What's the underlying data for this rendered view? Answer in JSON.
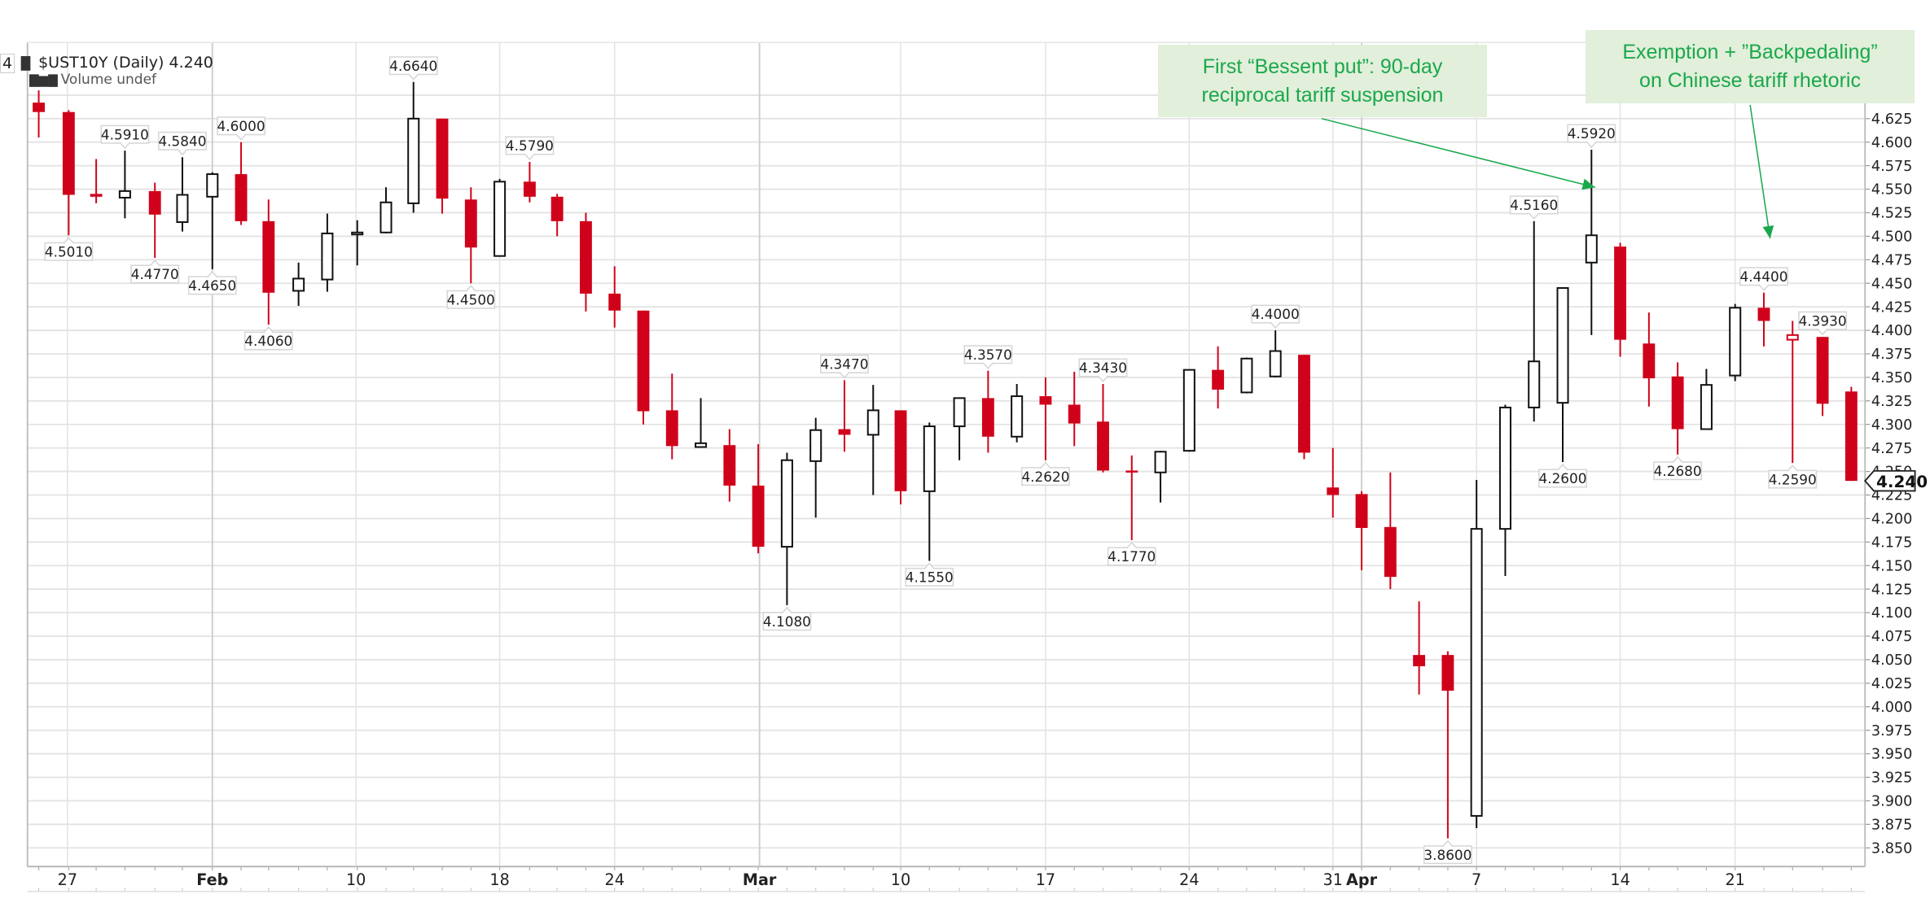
{
  "legend": {
    "prefix": "4",
    "icon": "candlestick-icon",
    "title": "$UST10Y (Daily) 4.240",
    "volume_icon": "bar-chart-icon",
    "volume": "Volume undef"
  },
  "annotations": [
    {
      "line1": "First “Bessent put”: 90-day",
      "line2": "reciprocal tariff suspension"
    },
    {
      "line1": "Exemption + ”Backpedaling”",
      "line2": "on Chinese tariff rhetoric"
    }
  ],
  "colors": {
    "down": "#d0021b",
    "up_stroke": "#111111",
    "grid": "#e3e3e3",
    "grid_major": "#cfcfcf",
    "annotation_bg": "#e2efda",
    "annotation_text": "#1aa84c",
    "arrow": "#1aa84c"
  },
  "chart_data": {
    "type": "candlestick",
    "title": "$UST10Y (Daily) 4.240",
    "xlabel": "",
    "ylabel": "",
    "ylim": [
      3.85,
      4.625
    ],
    "last_value": "4.240",
    "y_ticks": [
      "4.625",
      "4.600",
      "4.575",
      "4.550",
      "4.525",
      "4.500",
      "4.475",
      "4.450",
      "4.425",
      "4.400",
      "4.375",
      "4.350",
      "4.325",
      "4.300",
      "4.275",
      "4.250",
      "4.225",
      "4.200",
      "4.175",
      "4.150",
      "4.125",
      "4.100",
      "4.075",
      "4.050",
      "4.025",
      "4.000",
      "3.975",
      "3.950",
      "3.925",
      "3.900",
      "3.875",
      "3.850"
    ],
    "x_tick_labels": [
      {
        "label": "27",
        "x": 54,
        "bold": false
      },
      {
        "label": "Feb",
        "x": 170,
        "bold": true
      },
      {
        "label": "10",
        "x": 285,
        "bold": false
      },
      {
        "label": "18",
        "x": 400,
        "bold": false
      },
      {
        "label": "24",
        "x": 492,
        "bold": false
      },
      {
        "label": "Mar",
        "x": 608,
        "bold": true
      },
      {
        "label": "10",
        "x": 721,
        "bold": false
      },
      {
        "label": "17",
        "x": 837,
        "bold": false
      },
      {
        "label": "24",
        "x": 952,
        "bold": false
      },
      {
        "label": "31",
        "x": 1067,
        "bold": false
      },
      {
        "label": "Apr",
        "x": 1090,
        "bold": true
      },
      {
        "label": "7",
        "x": 1182,
        "bold": false
      },
      {
        "label": "14",
        "x": 1297,
        "bold": false
      },
      {
        "label": "21",
        "x": 1389,
        "bold": false
      }
    ],
    "candles": [
      {
        "x": 31,
        "o": 4.642,
        "h": 4.655,
        "l": 4.605,
        "c": 4.632
      },
      {
        "x": 55,
        "o": 4.632,
        "h": 4.634,
        "l": 4.501,
        "c": 4.544,
        "label_low": "4.5010"
      },
      {
        "x": 77,
        "o": 4.545,
        "h": 4.582,
        "l": 4.535,
        "c": 4.542
      },
      {
        "x": 100,
        "o": 4.541,
        "h": 4.591,
        "l": 4.519,
        "c": 4.548,
        "label_high": "4.5910"
      },
      {
        "x": 124,
        "o": 4.548,
        "h": 4.557,
        "l": 4.477,
        "c": 4.523,
        "label_low": "4.4770"
      },
      {
        "x": 146,
        "o": 4.515,
        "h": 4.584,
        "l": 4.505,
        "c": 4.544,
        "label_high": "4.5840"
      },
      {
        "x": 170,
        "o": 4.542,
        "h": 4.568,
        "l": 4.465,
        "c": 4.566,
        "label_low": "4.4650"
      },
      {
        "x": 193,
        "o": 4.566,
        "h": 4.6,
        "l": 4.512,
        "c": 4.516,
        "label_high": "4.6000"
      },
      {
        "x": 215,
        "o": 4.516,
        "h": 4.539,
        "l": 4.406,
        "c": 4.44,
        "label_low": "4.4060"
      },
      {
        "x": 239,
        "o": 4.442,
        "h": 4.472,
        "l": 4.426,
        "c": 4.455
      },
      {
        "x": 262,
        "o": 4.454,
        "h": 4.524,
        "l": 4.441,
        "c": 4.503
      },
      {
        "x": 286,
        "o": 4.503,
        "h": 4.517,
        "l": 4.469,
        "c": 4.504
      },
      {
        "x": 309,
        "o": 4.504,
        "h": 4.552,
        "l": 4.503,
        "c": 4.536
      },
      {
        "x": 331,
        "o": 4.535,
        "h": 4.664,
        "l": 4.525,
        "c": 4.625,
        "label_high": "4.6640"
      },
      {
        "x": 354,
        "o": 4.625,
        "h": 4.625,
        "l": 4.524,
        "c": 4.54
      },
      {
        "x": 377,
        "o": 4.539,
        "h": 4.552,
        "l": 4.45,
        "c": 4.488,
        "label_low": "4.4500"
      },
      {
        "x": 400,
        "o": 4.479,
        "h": 4.561,
        "l": 4.479,
        "c": 4.558
      },
      {
        "x": 424,
        "o": 4.558,
        "h": 4.579,
        "l": 4.536,
        "c": 4.542,
        "label_high": "4.5790"
      },
      {
        "x": 446,
        "o": 4.542,
        "h": 4.545,
        "l": 4.5,
        "c": 4.516
      },
      {
        "x": 469,
        "o": 4.516,
        "h": 4.525,
        "l": 4.42,
        "c": 4.439
      },
      {
        "x": 492,
        "o": 4.439,
        "h": 4.468,
        "l": 4.403,
        "c": 4.421
      },
      {
        "x": 515,
        "o": 4.421,
        "h": 4.421,
        "l": 4.3,
        "c": 4.314
      },
      {
        "x": 538,
        "o": 4.315,
        "h": 4.354,
        "l": 4.263,
        "c": 4.277
      },
      {
        "x": 561,
        "o": 4.276,
        "h": 4.328,
        "l": 4.276,
        "c": 4.28
      },
      {
        "x": 584,
        "o": 4.278,
        "h": 4.295,
        "l": 4.218,
        "c": 4.235
      },
      {
        "x": 607,
        "o": 4.235,
        "h": 4.279,
        "l": 4.163,
        "c": 4.17
      },
      {
        "x": 630,
        "o": 4.17,
        "h": 4.27,
        "l": 4.108,
        "c": 4.262,
        "label_low": "4.1080"
      },
      {
        "x": 653,
        "o": 4.261,
        "h": 4.307,
        "l": 4.201,
        "c": 4.294
      },
      {
        "x": 676,
        "o": 4.295,
        "h": 4.347,
        "l": 4.271,
        "c": 4.289,
        "label_high": "4.3470"
      },
      {
        "x": 699,
        "o": 4.289,
        "h": 4.342,
        "l": 4.225,
        "c": 4.315
      },
      {
        "x": 721,
        "o": 4.315,
        "h": 4.315,
        "l": 4.215,
        "c": 4.229
      },
      {
        "x": 744,
        "o": 4.229,
        "h": 4.302,
        "l": 4.155,
        "c": 4.298,
        "label_low": "4.1550"
      },
      {
        "x": 768,
        "o": 4.298,
        "h": 4.328,
        "l": 4.262,
        "c": 4.328
      },
      {
        "x": 791,
        "o": 4.328,
        "h": 4.357,
        "l": 4.27,
        "c": 4.287,
        "label_high": "4.3570"
      },
      {
        "x": 814,
        "o": 4.287,
        "h": 4.343,
        "l": 4.281,
        "c": 4.33
      },
      {
        "x": 837,
        "o": 4.33,
        "h": 4.35,
        "l": 4.262,
        "c": 4.321,
        "label_low": "4.2620"
      },
      {
        "x": 860,
        "o": 4.321,
        "h": 4.356,
        "l": 4.277,
        "c": 4.301
      },
      {
        "x": 883,
        "o": 4.303,
        "h": 4.343,
        "l": 4.249,
        "c": 4.251,
        "label_high": "4.3430"
      },
      {
        "x": 906,
        "o": 4.251,
        "h": 4.267,
        "l": 4.177,
        "c": 4.25,
        "label_low": "4.1770"
      },
      {
        "x": 929,
        "o": 4.249,
        "h": 4.272,
        "l": 4.217,
        "c": 4.271
      },
      {
        "x": 952,
        "o": 4.272,
        "h": 4.358,
        "l": 4.271,
        "c": 4.358
      },
      {
        "x": 975,
        "o": 4.358,
        "h": 4.383,
        "l": 4.317,
        "c": 4.337
      },
      {
        "x": 998,
        "o": 4.334,
        "h": 4.371,
        "l": 4.333,
        "c": 4.37
      },
      {
        "x": 1021,
        "o": 4.351,
        "h": 4.4,
        "l": 4.35,
        "c": 4.378,
        "label_high": "4.4000"
      },
      {
        "x": 1044,
        "o": 4.374,
        "h": 4.374,
        "l": 4.263,
        "c": 4.27
      },
      {
        "x": 1067,
        "o": 4.233,
        "h": 4.275,
        "l": 4.201,
        "c": 4.225
      },
      {
        "x": 1090,
        "o": 4.226,
        "h": 4.229,
        "l": 4.145,
        "c": 4.19
      },
      {
        "x": 1113,
        "o": 4.191,
        "h": 4.249,
        "l": 4.125,
        "c": 4.138
      },
      {
        "x": 1136,
        "o": 4.055,
        "h": 4.112,
        "l": 4.013,
        "c": 4.043
      },
      {
        "x": 1159,
        "o": 4.055,
        "h": 4.059,
        "l": 3.86,
        "c": 4.017,
        "label_low": "3.8600"
      },
      {
        "x": 1182,
        "o": 3.884,
        "h": 4.241,
        "l": 3.871,
        "c": 4.189
      },
      {
        "x": 1205,
        "o": 4.189,
        "h": 4.321,
        "l": 4.139,
        "c": 4.318
      },
      {
        "x": 1228,
        "o": 4.318,
        "h": 4.516,
        "l": 4.303,
        "c": 4.367,
        "label_high": "4.5160"
      },
      {
        "x": 1251,
        "o": 4.323,
        "h": 4.445,
        "l": 4.26,
        "c": 4.445,
        "label_low": "4.2600"
      },
      {
        "x": 1274,
        "o": 4.472,
        "h": 4.592,
        "l": 4.395,
        "c": 4.501,
        "label_high": "4.5920"
      },
      {
        "x": 1297,
        "o": 4.489,
        "h": 4.493,
        "l": 4.372,
        "c": 4.39
      },
      {
        "x": 1320,
        "o": 4.386,
        "h": 4.419,
        "l": 4.319,
        "c": 4.349
      },
      {
        "x": 1343,
        "o": 4.351,
        "h": 4.366,
        "l": 4.268,
        "c": 4.295,
        "label_low": "4.2680"
      },
      {
        "x": 1366,
        "o": 4.295,
        "h": 4.359,
        "l": 4.295,
        "c": 4.342
      },
      {
        "x": 1389,
        "o": 4.352,
        "h": 4.428,
        "l": 4.346,
        "c": 4.424
      },
      {
        "x": 1412,
        "o": 4.424,
        "h": 4.44,
        "l": 4.383,
        "c": 4.41,
        "label_high": "4.4400"
      },
      {
        "x": 1435,
        "o": 4.395,
        "h": 4.41,
        "l": 4.259,
        "c": 4.39,
        "hollow_red": true,
        "label_low": "4.2590"
      },
      {
        "x": 1459,
        "o": 4.393,
        "h": 4.393,
        "l": 4.309,
        "c": 4.322,
        "label_high": "4.3930"
      },
      {
        "x": 1482,
        "o": 4.335,
        "h": 4.34,
        "l": 4.24,
        "c": 4.24
      }
    ]
  }
}
